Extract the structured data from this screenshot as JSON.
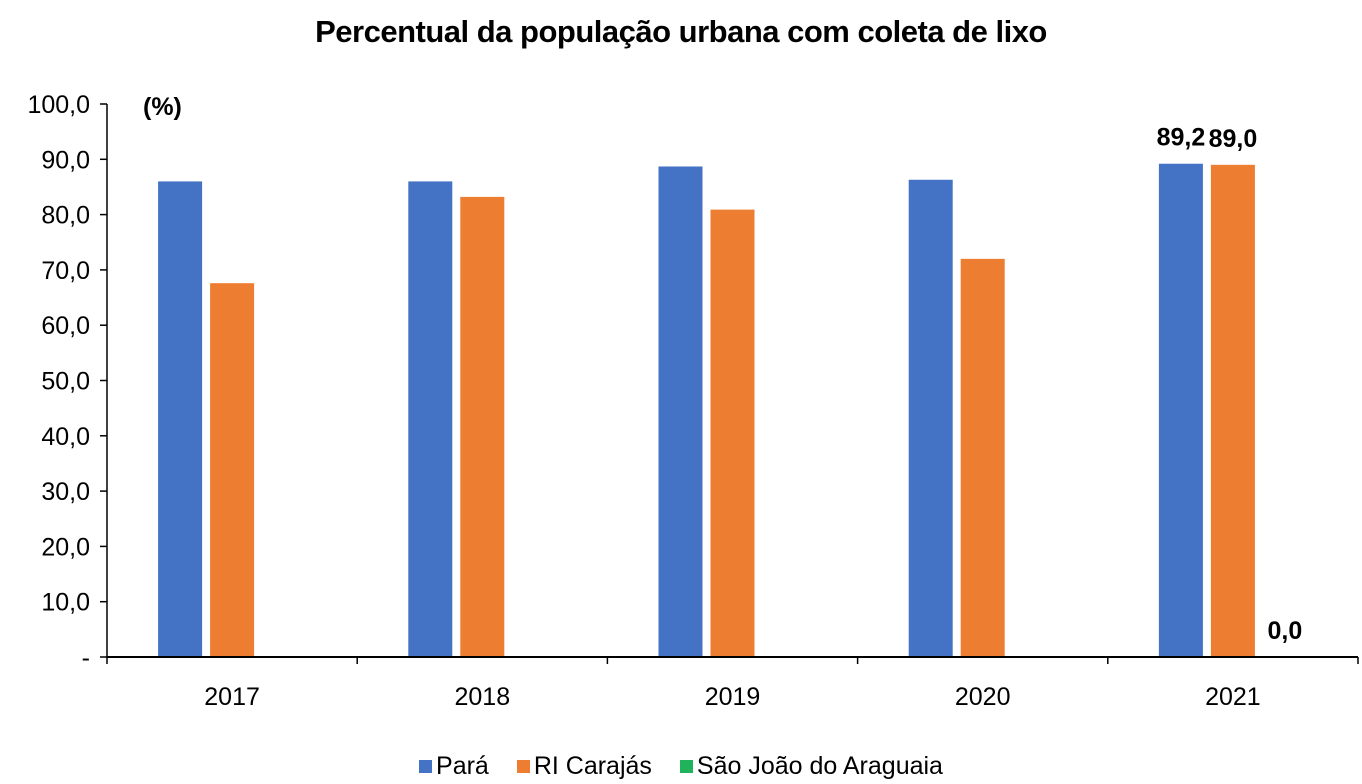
{
  "chart_data": {
    "type": "bar",
    "title": "Percentual da população urbana com coleta de lixo",
    "unit_label": "(%)",
    "categories": [
      "2017",
      "2018",
      "2019",
      "2020",
      "2021"
    ],
    "series": [
      {
        "name": "Pará",
        "color": "#4472C4",
        "values": [
          86.0,
          86.0,
          88.7,
          86.3,
          89.2
        ]
      },
      {
        "name": "RI Carajás",
        "color": "#ED7D31",
        "values": [
          67.6,
          83.2,
          80.9,
          72.0,
          89.0
        ]
      },
      {
        "name": "São João do Araguaia",
        "color": "#21B35C",
        "values": [
          null,
          null,
          null,
          null,
          0.0
        ]
      }
    ],
    "data_labels": [
      {
        "series": 0,
        "category": "2021",
        "text": "89,2"
      },
      {
        "series": 1,
        "category": "2021",
        "text": "89,0"
      },
      {
        "series": 2,
        "category": "2021",
        "text": "0,0"
      }
    ],
    "yticks": [
      "-",
      "10,0",
      "20,0",
      "30,0",
      "40,0",
      "50,0",
      "60,0",
      "70,0",
      "80,0",
      "90,0",
      "100,0"
    ],
    "ylim": [
      0,
      100
    ],
    "grid": false,
    "legend_position": "bottom"
  }
}
